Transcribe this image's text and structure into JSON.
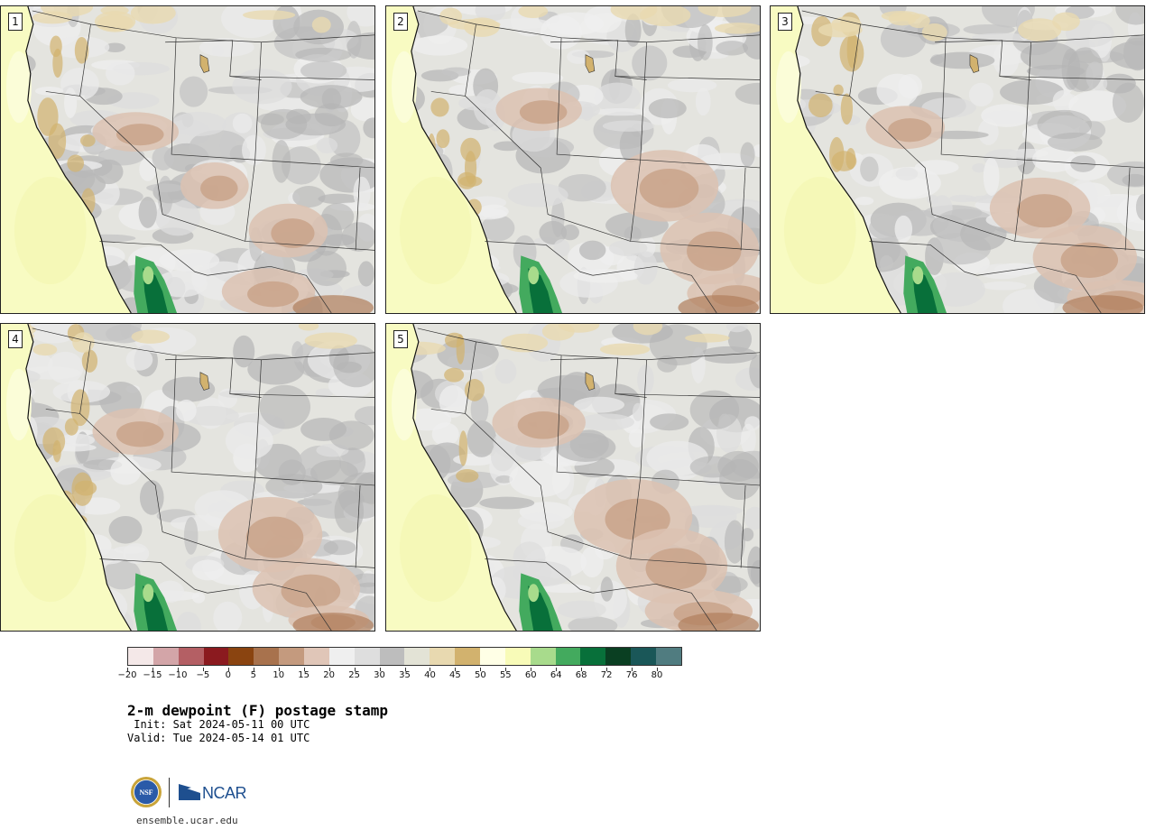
{
  "panels": [
    {
      "label": "1"
    },
    {
      "label": "2"
    },
    {
      "label": "3"
    },
    {
      "label": "4"
    },
    {
      "label": "5"
    }
  ],
  "colorbar": {
    "ticks": [
      "−20",
      "−15",
      "−10",
      "−5",
      "0",
      "5",
      "10",
      "15",
      "20",
      "25",
      "30",
      "35",
      "40",
      "45",
      "50",
      "55",
      "60",
      "64",
      "68",
      "72",
      "76",
      "80"
    ],
    "colors": [
      "#f4e8e8",
      "#d3a5a8",
      "#b45f64",
      "#8b1a1f",
      "#8a4410",
      "#a8724d",
      "#c49a7e",
      "#e0c6b8",
      "#efefef",
      "#dedede",
      "#bdbdbd",
      "#e3e3d6",
      "#e8d9b0",
      "#d2b26e",
      "#ffffe6",
      "#f8fbb8",
      "#a8db8c",
      "#43aa5e",
      "#08703a",
      "#0a3f22",
      "#1a5758",
      "#507c80"
    ]
  },
  "title": "2-m dewpoint (F) postage stamp",
  "init": " Init: Sat 2024-05-11 00 UTC",
  "valid": "Valid: Tue 2024-05-14 01 UTC",
  "logo": {
    "org": "NCAR",
    "seal": "NSF"
  },
  "website": "ensemble.ucar.edu"
}
